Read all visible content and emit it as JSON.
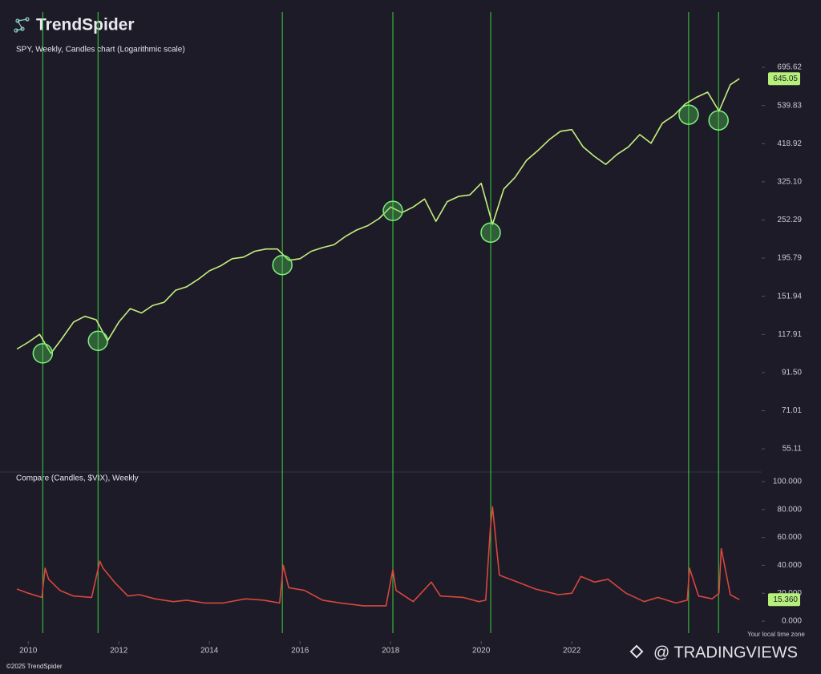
{
  "header": {
    "logo": "TrendSpider"
  },
  "footer": {
    "copyright": "©2025 TrendSpider",
    "watermark": "@ TRADINGVIEWS"
  },
  "chart_data": [
    {
      "type": "line",
      "title": "SPY, Weekly, Candles chart (Logarithmic scale)",
      "log_scale": true,
      "x": [
        2009.75,
        2010.0,
        2010.25,
        2010.5,
        2010.75,
        2011.0,
        2011.25,
        2011.5,
        2011.75,
        2012.0,
        2012.25,
        2012.5,
        2012.75,
        2013.0,
        2013.25,
        2013.5,
        2013.75,
        2014.0,
        2014.25,
        2014.5,
        2014.75,
        2015.0,
        2015.25,
        2015.5,
        2015.75,
        2016.0,
        2016.25,
        2016.5,
        2016.75,
        2017.0,
        2017.25,
        2017.5,
        2017.75,
        2018.0,
        2018.25,
        2018.5,
        2018.75,
        2019.0,
        2019.25,
        2019.5,
        2019.75,
        2020.0,
        2020.25,
        2020.5,
        2020.75,
        2021.0,
        2021.25,
        2021.5,
        2021.75,
        2022.0,
        2022.25,
        2022.5,
        2022.75,
        2023.0,
        2023.25,
        2023.5,
        2023.75,
        2024.0,
        2024.25,
        2024.5,
        2024.75,
        2025.0,
        2025.25,
        2025.5,
        2025.7
      ],
      "series": [
        {
          "color": "#c6ef7e",
          "values": [
            107,
            112,
            118,
            104,
            115,
            128,
            133,
            130,
            113,
            128,
            140,
            136,
            143,
            146,
            158,
            162,
            170,
            180,
            186,
            195,
            197,
            205,
            208,
            208,
            193,
            195,
            205,
            210,
            214,
            226,
            236,
            243,
            255,
            275,
            265,
            275,
            290,
            250,
            285,
            295,
            298,
            322,
            245,
            310,
            335,
            375,
            400,
            430,
            455,
            460,
            410,
            385,
            365,
            390,
            410,
            445,
            420,
            480,
            505,
            545,
            570,
            590,
            520,
            620,
            645.05
          ]
        }
      ],
      "xlim": [
        2009.73,
        2025.75
      ],
      "ylim": [
        47.5,
        730
      ],
      "yticks": [
        55.11,
        71.01,
        {
          "value": 91.5,
          "label": "91.50"
        },
        117.91,
        151.94,
        195.79,
        252.29,
        {
          "value": 325.1,
          "label": "325.10"
        },
        418.92,
        539.83,
        695.62
      ],
      "last_price": 645.05,
      "events": {
        "color": "#3fd23f",
        "x": [
          2010.32,
          2011.54,
          2015.61,
          2018.05,
          2020.21,
          2024.58,
          2025.24
        ],
        "y": [
          104,
          113,
          187,
          268,
          232,
          508,
          489
        ]
      }
    },
    {
      "type": "line",
      "title": "Compare (Candles, $VIX), Weekly",
      "x": [
        2009.75,
        2010.0,
        2010.3,
        2010.37,
        2010.45,
        2010.7,
        2011.0,
        2011.4,
        2011.58,
        2011.65,
        2011.9,
        2012.2,
        2012.45,
        2012.8,
        2013.2,
        2013.5,
        2013.9,
        2014.3,
        2014.8,
        2015.2,
        2015.55,
        2015.63,
        2015.75,
        2016.1,
        2016.5,
        2016.9,
        2017.4,
        2017.9,
        2018.05,
        2018.12,
        2018.5,
        2018.9,
        2019.1,
        2019.6,
        2019.95,
        2020.1,
        2020.2,
        2020.25,
        2020.4,
        2020.8,
        2021.2,
        2021.7,
        2022.0,
        2022.2,
        2022.5,
        2022.8,
        2023.2,
        2023.6,
        2023.9,
        2024.3,
        2024.55,
        2024.6,
        2024.8,
        2025.1,
        2025.25,
        2025.3,
        2025.5,
        2025.7
      ],
      "series": [
        {
          "color": "#d8473d",
          "values": [
            23,
            20,
            17,
            38,
            30,
            22,
            18,
            17,
            43,
            38,
            28,
            18,
            19,
            16,
            14,
            15,
            13,
            13,
            16,
            15,
            13,
            40,
            24,
            22,
            15,
            13,
            11,
            11,
            37,
            22,
            14,
            28,
            18,
            17,
            14,
            15,
            66,
            82,
            33,
            28,
            23,
            19,
            20,
            32,
            28,
            30,
            20,
            14,
            17,
            13,
            15,
            38,
            18,
            16,
            20,
            52,
            19,
            15.36
          ]
        }
      ],
      "xlim": [
        2009.73,
        2025.75
      ],
      "xticks": [
        2010,
        2012,
        2014,
        2016,
        2018,
        2020,
        2022
      ],
      "ylim": [
        -8.6,
        106.3
      ],
      "yticks": [
        {
          "value": 0,
          "label": "0.000"
        },
        {
          "value": 20,
          "label": "20.000"
        },
        {
          "value": 40,
          "label": "40.000"
        },
        {
          "value": 60,
          "label": "60.000"
        },
        {
          "value": 80,
          "label": "80.000"
        },
        {
          "value": 100,
          "label": "100.000"
        }
      ],
      "last_value": {
        "value": 15.36,
        "label": "15.360"
      },
      "time_zone_note": "Your local time zone"
    }
  ]
}
